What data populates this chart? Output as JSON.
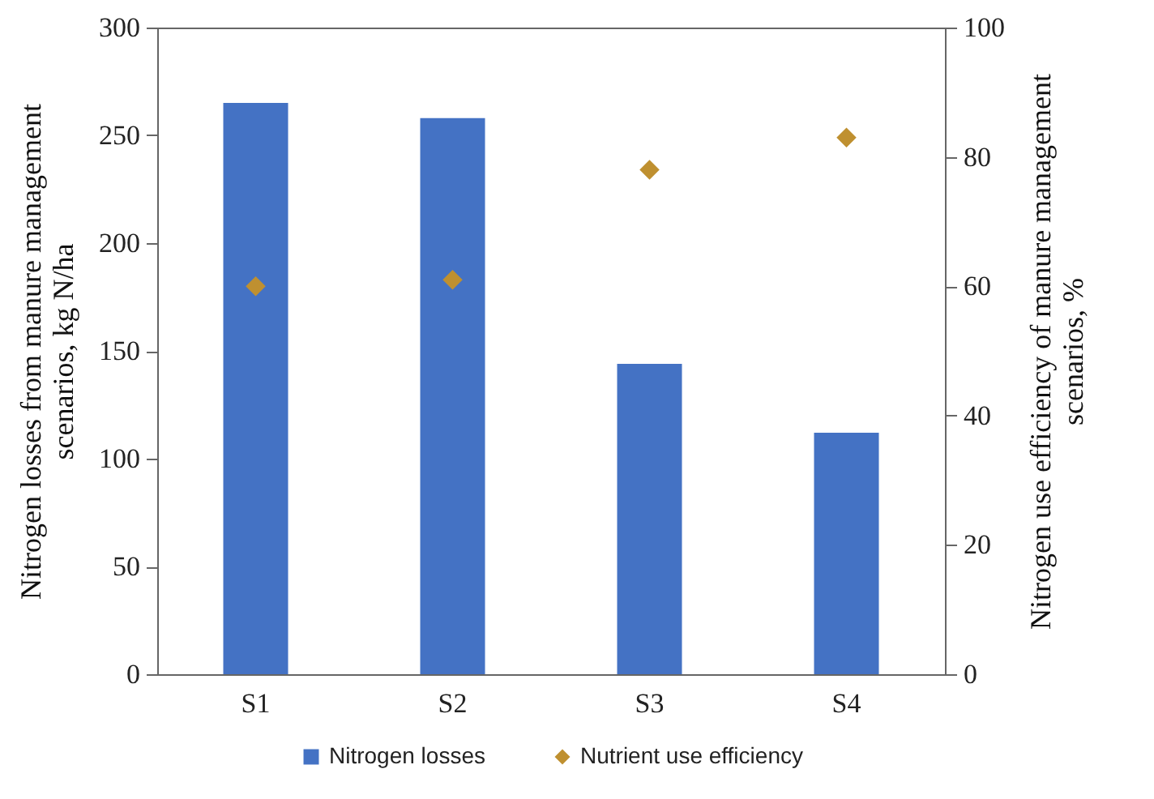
{
  "chart_data": {
    "type": "bar",
    "categories": [
      "S1",
      "S2",
      "S3",
      "S4"
    ],
    "series": [
      {
        "name": "Nitrogen losses",
        "color": "#4472c4",
        "values": [
          265,
          258,
          144,
          112
        ]
      },
      {
        "name": "Nutrient use efficiency",
        "type": "scatter",
        "axis": "y2",
        "marker": "diamond",
        "color": "#bf9030",
        "values": [
          60,
          61,
          78,
          83
        ]
      }
    ],
    "ylabel": "Nitrogen losses from manure management scenarios, kg N/ha",
    "y2label": "Nitrogen use efficiency of manure management scenarios, %",
    "ylim": [
      0,
      300
    ],
    "yticks": [
      0,
      50,
      100,
      150,
      200,
      250,
      300
    ],
    "y2lim": [
      0,
      100
    ],
    "y2ticks": [
      0,
      20,
      40,
      60,
      80,
      100
    ],
    "grid": false,
    "legend": "bottom"
  }
}
